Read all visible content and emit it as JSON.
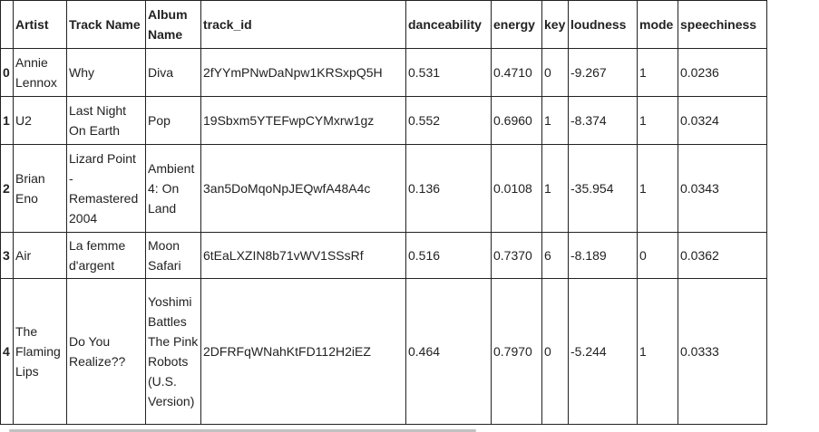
{
  "table": {
    "columns": [
      "",
      "Artist",
      "Track Name",
      "Album Name",
      "track_id",
      "danceability",
      "energy",
      "key",
      "loudness",
      "mode",
      "speechiness"
    ],
    "rows": [
      [
        "0",
        "Annie Lennox",
        "Why",
        "Diva",
        "2fYYmPNwDaNpw1KRSxpQ5H",
        "0.531",
        "0.4710",
        "0",
        "-9.267",
        "1",
        "0.0236"
      ],
      [
        "1",
        "U2",
        "Last Night On Earth",
        "Pop",
        "19Sbxm5YTEFwpCYMxrw1gz",
        "0.552",
        "0.6960",
        "1",
        "-8.374",
        "1",
        "0.0324"
      ],
      [
        "2",
        "Brian Eno",
        "Lizard Point - Remastered 2004",
        "Ambient 4: On Land",
        "3an5DoMqoNpJEQwfA48A4c",
        "0.136",
        "0.0108",
        "1",
        "-35.954",
        "1",
        "0.0343"
      ],
      [
        "3",
        "Air",
        "La femme d'argent",
        "Moon Safari",
        "6tEaLXZIN8b71vWV1SSsRf",
        "0.516",
        "0.7370",
        "6",
        "-8.189",
        "0",
        "0.0362"
      ],
      [
        "4",
        "The Flaming Lips",
        "Do You Realize??",
        "Yoshimi Battles The Pink Robots (U.S. Version)",
        "2DFRFqWNahKtFD112H2iEZ",
        "0.464",
        "0.7970",
        "0",
        "-5.244",
        "1",
        "0.0333"
      ]
    ]
  }
}
